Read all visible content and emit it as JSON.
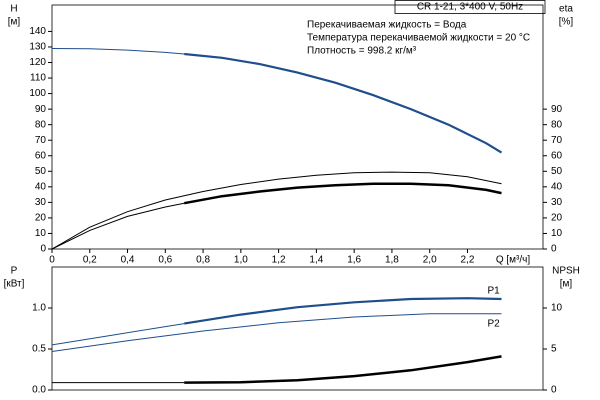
{
  "chart_data": [
    {
      "type": "line",
      "title": "CR 1-21, 3*400 V, 50Hz",
      "annotations": [
        "Перекачиваемая жидкость = Вода",
        "Температура перекачиваемой жидкости = 20 °C",
        "Плотность = 998.2 кг/м³"
      ],
      "ylabel": [
        "H",
        "[м]"
      ],
      "y2label": [
        "eta",
        "[%]"
      ],
      "xlabel": "Q [м³/ч]",
      "xlim": [
        0,
        2.6
      ],
      "xticks": [
        0,
        {
          "value": 0.2,
          "label": "0,2"
        },
        {
          "value": 0.4,
          "label": "0,4"
        },
        {
          "value": 0.6,
          "label": "0,6"
        },
        {
          "value": 0.8,
          "label": "0,8"
        },
        {
          "value": 1.0,
          "label": "1,0"
        },
        {
          "value": 1.2,
          "label": "1,2"
        },
        {
          "value": 1.4,
          "label": "1,4"
        },
        {
          "value": 1.6,
          "label": "1,6"
        },
        {
          "value": 1.8,
          "label": "1,8"
        },
        {
          "value": 2.0,
          "label": "2,0"
        },
        {
          "value": 2.2,
          "label": "2,2"
        }
      ],
      "ylim": [
        0,
        157
      ],
      "yticks": [
        0,
        10,
        20,
        30,
        40,
        50,
        60,
        70,
        80,
        90,
        100,
        110,
        120,
        130,
        140
      ],
      "y2lim": [
        0,
        157
      ],
      "y2ticks": [
        0,
        10,
        20,
        30,
        40,
        50,
        60,
        70,
        80,
        90
      ],
      "series": [
        {
          "color": "#1f4e8c",
          "width": 1,
          "x": [
            0,
            0.2,
            0.4,
            0.6,
            0.7
          ],
          "values": [
            129,
            128.8,
            128,
            126.5,
            125.5
          ]
        },
        {
          "color": "#1f4e8c",
          "width": 2.2,
          "x": [
            0.7,
            0.9,
            1.1,
            1.3,
            1.5,
            1.7,
            1.9,
            2.1,
            2.3,
            2.38
          ],
          "values": [
            125.5,
            123,
            119,
            113.5,
            107,
            99,
            90,
            80,
            68,
            62
          ]
        },
        {
          "color": "#000000",
          "width": 1,
          "axis": "y2",
          "x": [
            0,
            0.2,
            0.4,
            0.6,
            0.8,
            1.0,
            1.2,
            1.4,
            1.6,
            1.8,
            2.0,
            2.2,
            2.38
          ],
          "values": [
            0,
            14,
            24,
            31.5,
            37,
            41.5,
            45,
            47.5,
            49,
            49.5,
            49,
            46.5,
            42
          ]
        },
        {
          "color": "#000000",
          "width": 1,
          "axis": "y2",
          "x": [
            0,
            0.2,
            0.4,
            0.6,
            0.7
          ],
          "values": [
            0,
            12,
            21,
            27,
            29.5
          ]
        },
        {
          "color": "#000000",
          "width": 2.5,
          "axis": "y2",
          "x": [
            0.7,
            0.9,
            1.1,
            1.3,
            1.5,
            1.7,
            1.9,
            2.1,
            2.3,
            2.38
          ],
          "values": [
            29.5,
            34,
            37,
            39.5,
            41,
            42,
            42,
            41,
            38,
            36
          ]
        }
      ]
    },
    {
      "type": "line",
      "ylabel": [
        "P",
        "[кВт]"
      ],
      "y2label": [
        "NPSH",
        "[м]"
      ],
      "xlim": [
        0,
        2.6
      ],
      "ylim": [
        0,
        1.5
      ],
      "yticks": [
        {
          "value": 0,
          "label": "0.0"
        },
        {
          "value": 0.5,
          "label": "0.5"
        },
        {
          "value": 1.0,
          "label": "1.0"
        }
      ],
      "y2lim": [
        0,
        15
      ],
      "y2ticks": [
        0,
        5,
        10
      ],
      "series": [
        {
          "color": "#1f4e8c",
          "width": 1,
          "x": [
            0,
            0.35,
            0.7
          ],
          "values": [
            0.55,
            0.68,
            0.81
          ]
        },
        {
          "name": "P1",
          "color": "#1f4e8c",
          "width": 2.2,
          "x": [
            0.7,
            1.0,
            1.3,
            1.6,
            1.9,
            2.2,
            2.38
          ],
          "values": [
            0.81,
            0.92,
            1.01,
            1.07,
            1.11,
            1.12,
            1.11
          ]
        },
        {
          "name": "P2",
          "color": "#1f4e8c",
          "width": 1,
          "x": [
            0,
            0.4,
            0.8,
            1.2,
            1.6,
            2.0,
            2.38
          ],
          "values": [
            0.47,
            0.6,
            0.72,
            0.82,
            0.89,
            0.93,
            0.93
          ]
        },
        {
          "color": "#000000",
          "width": 1,
          "axis": "y2",
          "x": [
            0,
            0.7
          ],
          "values": [
            0.9,
            0.9
          ]
        },
        {
          "color": "#000000",
          "width": 2.5,
          "axis": "y2",
          "x": [
            0.7,
            1.0,
            1.3,
            1.6,
            1.9,
            2.2,
            2.38
          ],
          "values": [
            0.9,
            0.95,
            1.2,
            1.7,
            2.4,
            3.4,
            4.1
          ]
        }
      ]
    }
  ]
}
